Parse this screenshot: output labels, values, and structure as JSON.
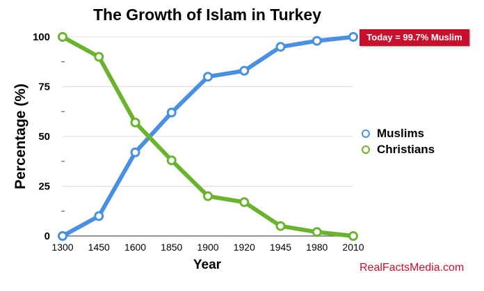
{
  "chart_data": {
    "type": "line",
    "title": "The Growth of Islam in Turkey",
    "xlabel": "Year",
    "ylabel": "Percentage (%)",
    "categories": [
      "1300",
      "1450",
      "1600",
      "1850",
      "1900",
      "1920",
      "1945",
      "1980",
      "2010"
    ],
    "ylim": [
      0,
      100
    ],
    "y_ticks": [
      "0",
      "25",
      "50",
      "75",
      "100"
    ],
    "grid": true,
    "legend_position": "right",
    "series": [
      {
        "name": "Muslims",
        "color": "#4a90e2",
        "values": [
          0,
          10,
          42,
          62,
          80,
          83,
          95,
          98,
          100
        ]
      },
      {
        "name": "Christians",
        "color": "#6ab42d",
        "values": [
          100,
          90,
          57,
          38,
          20,
          17,
          5,
          2,
          0
        ]
      }
    ],
    "annotation": "Today = 99.7% Muslim",
    "source": "RealFactsMedia.com"
  }
}
